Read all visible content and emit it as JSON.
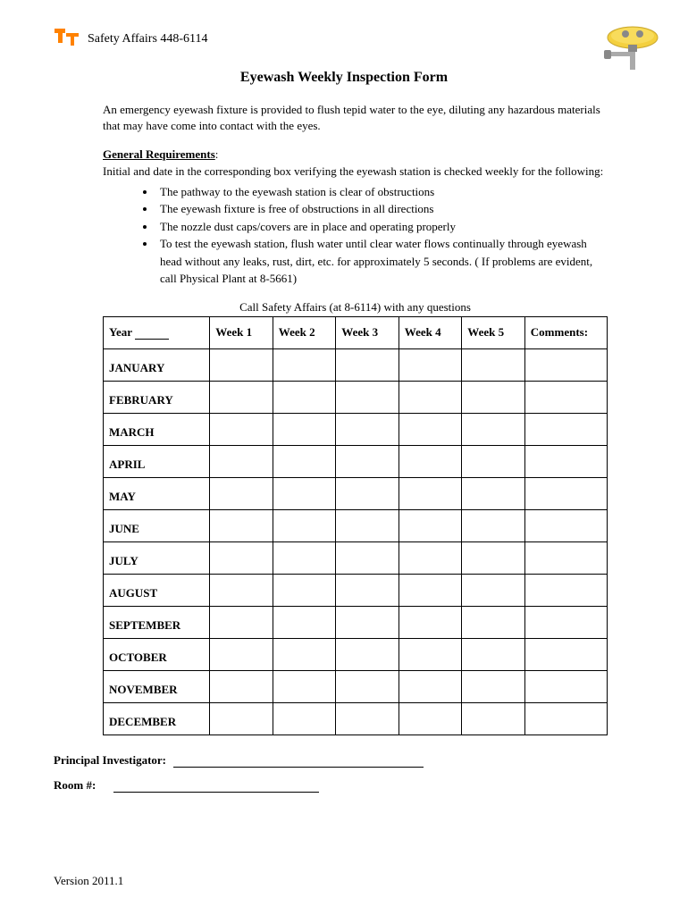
{
  "header": {
    "text": "Safety Affairs 448-6114"
  },
  "title": "Eyewash Weekly Inspection Form",
  "intro": "An emergency eyewash fixture is provided to flush tepid water to the eye, diluting any hazardous materials that may have come into contact with the eyes.",
  "requirements": {
    "heading": "General Requirements",
    "colon": ":",
    "text": "Initial and date in the corresponding box verifying the eyewash station is checked weekly for the following:",
    "items": [
      "The pathway to the eyewash station is clear of obstructions",
      "The eyewash fixture is free of obstructions in all directions",
      "The nozzle dust caps/covers are in place and operating properly",
      "To test the eyewash station, flush water until clear water flows continually through eyewash head without any leaks, rust, dirt, etc. for approximately 5 seconds. ( If problems are evident, call Physical Plant at 8-5661)"
    ]
  },
  "call_text": "Call Safety Affairs (at 8-6114) with any questions",
  "table": {
    "year_label": "Year",
    "columns": [
      "Week 1",
      "Week 2",
      "Week 3",
      "Week 4",
      "Week 5",
      "Comments:"
    ],
    "months": [
      "JANUARY",
      "FEBRUARY",
      "MARCH",
      "APRIL",
      "MAY",
      "JUNE",
      "JULY",
      "AUGUST",
      "SEPTEMBER",
      "OCTOBER",
      "NOVEMBER",
      "DECEMBER"
    ]
  },
  "signatures": {
    "pi_label": "Principal Investigator:",
    "room_label": "Room #:"
  },
  "version": "Version 2011.1",
  "colors": {
    "logo_orange": "#ff8200",
    "eyewash_yellow": "#f4d03f",
    "eyewash_gray": "#888888"
  }
}
